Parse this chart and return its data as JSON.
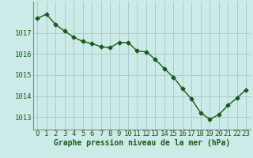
{
  "x": [
    0,
    1,
    2,
    3,
    4,
    5,
    6,
    7,
    8,
    9,
    10,
    11,
    12,
    13,
    14,
    15,
    16,
    17,
    18,
    19,
    20,
    21,
    22,
    23
  ],
  "y": [
    1017.7,
    1017.9,
    1017.4,
    1017.1,
    1016.8,
    1016.6,
    1016.5,
    1016.35,
    1016.3,
    1016.55,
    1016.55,
    1016.15,
    1016.1,
    1015.75,
    1015.3,
    1014.9,
    1014.35,
    1013.85,
    1013.2,
    1012.9,
    1013.1,
    1013.55,
    1013.9,
    1014.3
  ],
  "line_color": "#1a5c1a",
  "marker": "D",
  "marker_size": 2.5,
  "background_color": "#cceae7",
  "grid_color": "#aacccc",
  "xlabel": "Graphe pression niveau de la mer (hPa)",
  "xlabel_color": "#1a5c1a",
  "xlabel_fontsize": 7.0,
  "tick_color": "#1a5c1a",
  "tick_fontsize": 6.5,
  "ylim": [
    1012.4,
    1018.5
  ],
  "yticks": [
    1013,
    1014,
    1015,
    1016,
    1017
  ],
  "xlim": [
    -0.5,
    23.5
  ],
  "spine_color": "#888888",
  "linewidth": 1.0
}
